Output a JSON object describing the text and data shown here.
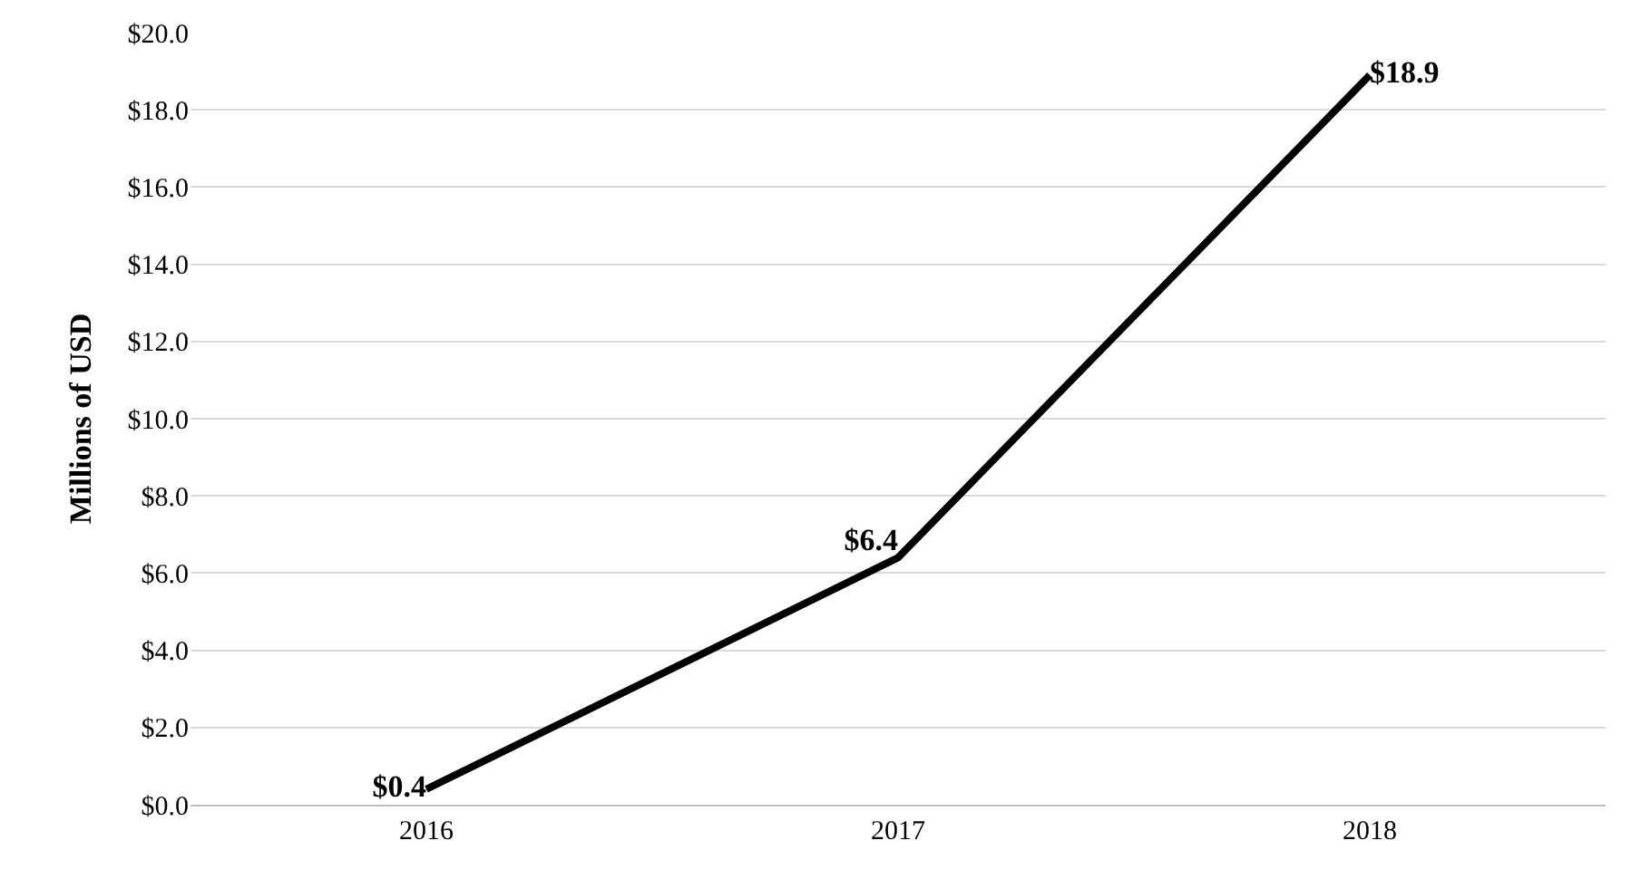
{
  "chart_data": {
    "type": "line",
    "ylabel": "Millions of USD",
    "categories": [
      "2016",
      "2017",
      "2018"
    ],
    "series": [
      {
        "color": "#000000",
        "values": [
          0.4,
          6.4,
          18.9
        ],
        "value_labels": [
          "$0.4",
          "$6.4",
          "$18.9"
        ]
      }
    ],
    "ylim": [
      0,
      20
    ],
    "yticks": [
      {
        "value": 0,
        "label": "$0.0"
      },
      {
        "value": 2,
        "label": "$2.0"
      },
      {
        "value": 4,
        "label": "$4.0"
      },
      {
        "value": 6,
        "label": "$6.0"
      },
      {
        "value": 8,
        "label": "$8.0"
      },
      {
        "value": 10,
        "label": "$10.0"
      },
      {
        "value": 12,
        "label": "$12.0"
      },
      {
        "value": 14,
        "label": "$14.0"
      },
      {
        "value": 16,
        "label": "$16.0"
      },
      {
        "value": 18,
        "label": "$18.0"
      },
      {
        "value": 20,
        "label": "$20.0"
      }
    ],
    "grid": "y",
    "marker": "none",
    "line_style": "solid"
  }
}
